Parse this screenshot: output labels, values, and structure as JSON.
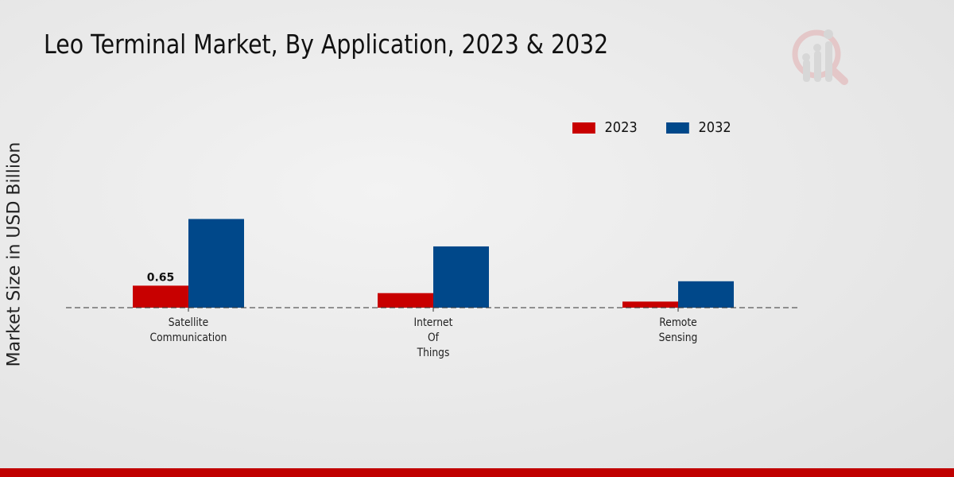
{
  "title": "Leo Terminal Market, By Application, 2023 & 2032",
  "colors": {
    "2023": "#c80000",
    "2032": "#00488a",
    "footer": "#c00000"
  },
  "chart_data": {
    "type": "bar",
    "title": "Leo Terminal Market, By Application, 2023 & 2032",
    "xlabel": "",
    "ylabel": "Market Size in USD Billion",
    "categories": [
      [
        "Satellite",
        "Communication"
      ],
      [
        "Internet",
        "Of",
        "Things"
      ],
      [
        "Remote",
        "Sensing"
      ]
    ],
    "series": [
      {
        "name": "2023",
        "values": [
          0.65,
          0.43,
          0.18
        ]
      },
      {
        "name": "2032",
        "values": [
          2.62,
          1.81,
          0.78
        ]
      }
    ],
    "data_labels": [
      {
        "series": 0,
        "index": 0,
        "text": "0.65"
      }
    ],
    "ylim": [
      0,
      3.5
    ],
    "grid": false,
    "legend": "top-right"
  }
}
